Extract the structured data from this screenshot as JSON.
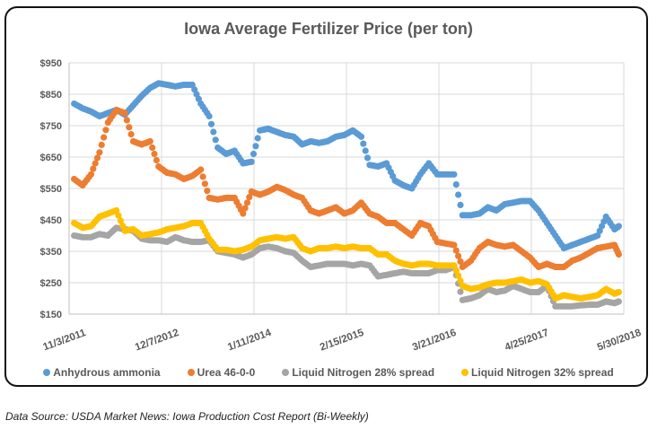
{
  "chart_data": {
    "type": "scatter",
    "title": "Iowa Average Fertilizer Price (per ton)",
    "xlabel": "",
    "ylabel": "",
    "x_ticks": [
      "11/3/2011",
      "12/7/2012",
      "1/11/2014",
      "2/15/2015",
      "3/21/2016",
      "4/25/2017",
      "5/30/2018"
    ],
    "y_ticks": [
      "$150",
      "$250",
      "$350",
      "$450",
      "$550",
      "$650",
      "$750",
      "$850",
      "$950"
    ],
    "ylim": [
      150,
      950
    ],
    "xlim_years": [
      2011.84,
      2018.41
    ],
    "grid": true,
    "legend_position": "bottom",
    "series": [
      {
        "name": "Anhydrous ammonia",
        "color": "#5B9BD5",
        "x": [
          2011.9,
          2012.0,
          2012.1,
          2012.2,
          2012.3,
          2012.4,
          2012.5,
          2012.6,
          2012.7,
          2012.8,
          2012.9,
          2013.0,
          2013.1,
          2013.2,
          2013.3,
          2013.4,
          2013.5,
          2013.6,
          2013.7,
          2013.8,
          2013.9,
          2014.0,
          2014.1,
          2014.2,
          2014.3,
          2014.4,
          2014.5,
          2014.6,
          2014.7,
          2014.8,
          2014.9,
          2015.0,
          2015.1,
          2015.2,
          2015.3,
          2015.4,
          2015.5,
          2015.6,
          2015.7,
          2015.8,
          2015.9,
          2016.0,
          2016.1,
          2016.2,
          2016.3,
          2016.4,
          2016.5,
          2016.6,
          2016.7,
          2016.8,
          2016.9,
          2017.0,
          2017.1,
          2017.2,
          2017.3,
          2017.4,
          2017.5,
          2017.6,
          2017.7,
          2017.8,
          2017.9,
          2018.0,
          2018.1,
          2018.2,
          2018.3,
          2018.35
        ],
        "y": [
          820,
          805,
          795,
          780,
          790,
          800,
          785,
          815,
          845,
          870,
          885,
          880,
          875,
          880,
          880,
          820,
          780,
          680,
          660,
          670,
          630,
          635,
          735,
          740,
          730,
          720,
          715,
          690,
          700,
          695,
          700,
          715,
          720,
          735,
          715,
          625,
          620,
          630,
          575,
          560,
          550,
          595,
          630,
          595,
          595,
          595,
          465,
          465,
          470,
          490,
          480,
          500,
          505,
          510,
          510,
          480,
          440,
          400,
          360,
          370,
          380,
          390,
          400,
          460,
          420,
          430
        ]
      },
      {
        "name": "Urea 46-0-0",
        "color": "#ED7D31",
        "x": [
          2011.9,
          2012.0,
          2012.1,
          2012.2,
          2012.3,
          2012.4,
          2012.5,
          2012.6,
          2012.7,
          2012.8,
          2012.9,
          2013.0,
          2013.1,
          2013.2,
          2013.3,
          2013.4,
          2013.5,
          2013.6,
          2013.7,
          2013.8,
          2013.9,
          2014.0,
          2014.1,
          2014.2,
          2014.3,
          2014.4,
          2014.5,
          2014.6,
          2014.7,
          2014.8,
          2014.9,
          2015.0,
          2015.1,
          2015.2,
          2015.3,
          2015.4,
          2015.5,
          2015.6,
          2015.7,
          2015.8,
          2015.9,
          2016.0,
          2016.1,
          2016.2,
          2016.3,
          2016.4,
          2016.5,
          2016.6,
          2016.7,
          2016.8,
          2016.9,
          2017.0,
          2017.1,
          2017.2,
          2017.3,
          2017.4,
          2017.5,
          2017.6,
          2017.7,
          2017.8,
          2017.9,
          2018.0,
          2018.1,
          2018.2,
          2018.3,
          2018.35
        ],
        "y": [
          580,
          560,
          595,
          665,
          760,
          800,
          790,
          700,
          690,
          700,
          620,
          600,
          595,
          580,
          590,
          610,
          520,
          515,
          520,
          520,
          470,
          540,
          530,
          540,
          555,
          545,
          530,
          520,
          480,
          470,
          480,
          490,
          470,
          480,
          505,
          470,
          460,
          440,
          440,
          420,
          400,
          440,
          430,
          380,
          375,
          370,
          300,
          320,
          360,
          380,
          370,
          365,
          370,
          350,
          330,
          300,
          310,
          300,
          300,
          320,
          330,
          345,
          360,
          365,
          370,
          340
        ]
      },
      {
        "name": "Liquid Nitrogen 28% spread",
        "color": "#A5A5A5",
        "x": [
          2011.9,
          2012.0,
          2012.1,
          2012.2,
          2012.3,
          2012.4,
          2012.5,
          2012.6,
          2012.7,
          2012.8,
          2012.9,
          2013.0,
          2013.1,
          2013.2,
          2013.3,
          2013.4,
          2013.5,
          2013.6,
          2013.7,
          2013.8,
          2013.9,
          2014.0,
          2014.1,
          2014.2,
          2014.3,
          2014.4,
          2014.5,
          2014.6,
          2014.7,
          2014.8,
          2014.9,
          2015.0,
          2015.1,
          2015.2,
          2015.3,
          2015.4,
          2015.5,
          2015.6,
          2015.7,
          2015.8,
          2015.9,
          2016.0,
          2016.1,
          2016.2,
          2016.3,
          2016.4,
          2016.5,
          2016.6,
          2016.7,
          2016.8,
          2016.9,
          2017.0,
          2017.1,
          2017.2,
          2017.3,
          2017.4,
          2017.5,
          2017.6,
          2017.7,
          2017.8,
          2017.9,
          2018.0,
          2018.1,
          2018.2,
          2018.3,
          2018.35
        ],
        "y": [
          400,
          395,
          395,
          405,
          400,
          425,
          420,
          415,
          390,
          385,
          385,
          380,
          395,
          385,
          380,
          380,
          385,
          350,
          345,
          340,
          330,
          340,
          360,
          365,
          360,
          350,
          345,
          320,
          300,
          305,
          310,
          310,
          310,
          305,
          310,
          305,
          270,
          275,
          280,
          285,
          280,
          280,
          280,
          290,
          290,
          300,
          195,
          200,
          210,
          230,
          220,
          225,
          240,
          230,
          220,
          220,
          240,
          175,
          175,
          175,
          178,
          180,
          180,
          190,
          185,
          190
        ]
      },
      {
        "name": "Liquid Nitrogen 32% spread",
        "color": "#FFC000",
        "x": [
          2011.9,
          2012.0,
          2012.1,
          2012.2,
          2012.3,
          2012.4,
          2012.5,
          2012.6,
          2012.7,
          2012.8,
          2012.9,
          2013.0,
          2013.1,
          2013.2,
          2013.3,
          2013.4,
          2013.5,
          2013.6,
          2013.7,
          2013.8,
          2013.9,
          2014.0,
          2014.1,
          2014.2,
          2014.3,
          2014.4,
          2014.5,
          2014.6,
          2014.7,
          2014.8,
          2014.9,
          2015.0,
          2015.1,
          2015.2,
          2015.3,
          2015.4,
          2015.5,
          2015.6,
          2015.7,
          2015.8,
          2015.9,
          2016.0,
          2016.1,
          2016.2,
          2016.3,
          2016.4,
          2016.5,
          2016.6,
          2016.7,
          2016.8,
          2016.9,
          2017.0,
          2017.1,
          2017.2,
          2017.3,
          2017.4,
          2017.5,
          2017.6,
          2017.7,
          2017.8,
          2017.9,
          2018.0,
          2018.1,
          2018.2,
          2018.3,
          2018.35
        ],
        "y": [
          440,
          425,
          430,
          460,
          470,
          480,
          415,
          420,
          400,
          405,
          410,
          420,
          425,
          430,
          440,
          440,
          390,
          355,
          355,
          350,
          355,
          365,
          385,
          390,
          395,
          390,
          395,
          360,
          350,
          360,
          360,
          365,
          360,
          365,
          360,
          360,
          340,
          340,
          320,
          310,
          305,
          310,
          310,
          305,
          305,
          305,
          240,
          230,
          235,
          245,
          250,
          250,
          255,
          260,
          250,
          255,
          245,
          200,
          210,
          205,
          200,
          205,
          210,
          230,
          215,
          220
        ]
      }
    ]
  },
  "legend": [
    {
      "label": "Anhydrous ammonia",
      "color": "#5B9BD5"
    },
    {
      "label": "Urea 46-0-0",
      "color": "#ED7D31"
    },
    {
      "label": "Liquid Nitrogen 28% spread",
      "color": "#A5A5A5"
    },
    {
      "label": "Liquid Nitrogen 32% spread",
      "color": "#FFC000"
    }
  ],
  "source_note": "Data Source: USDA Market News: Iowa Production Cost Report (Bi-Weekly)"
}
